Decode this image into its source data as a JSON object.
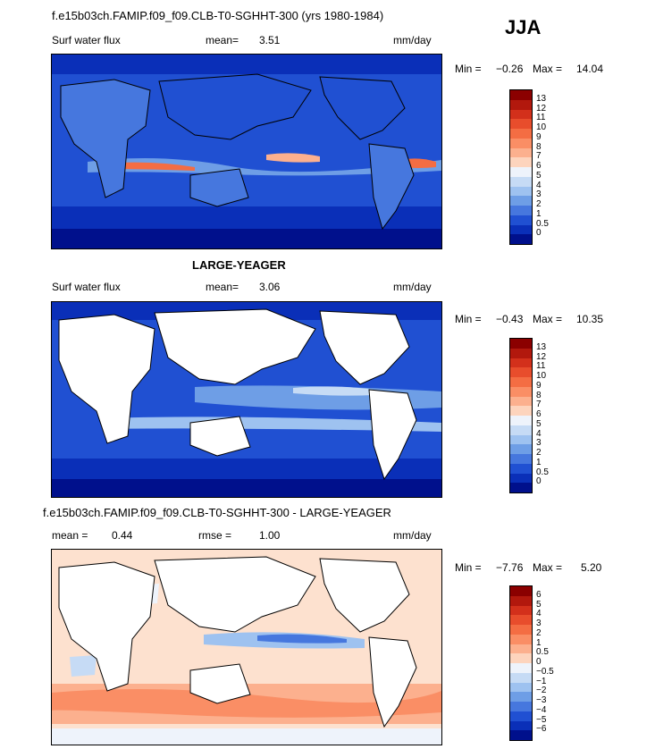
{
  "season": "JJA",
  "panels": [
    {
      "title": "f.e15b03ch.FAMIP.f09_f09.CLB-T0-SGHHT-300 (yrs 1980-1984)",
      "variable": "Surf water flux",
      "stat1_label": "mean=",
      "stat1_value": "3.51",
      "stat2_label": "",
      "stat2_value": "",
      "units": "mm/day",
      "min_label": "Min =",
      "min_value": "−0.26",
      "max_label": "Max =",
      "max_value": "14.04",
      "colorbar_labels": [
        "13",
        "12",
        "11",
        "10",
        "9",
        "8",
        "7",
        "6",
        "5",
        "4",
        "3",
        "2",
        "1",
        "0.5",
        "0"
      ],
      "colorbar_colors": [
        "#8b0000",
        "#b2180d",
        "#d3301b",
        "#e84d2c",
        "#f46d43",
        "#fa8e65",
        "#fcb08e",
        "#fdd4bd",
        "#eef3fb",
        "#c6dbf5",
        "#9ec2f0",
        "#6e9ee6",
        "#4677de",
        "#2050d2",
        "#0a2fb8",
        "#00108c"
      ]
    },
    {
      "title": "LARGE-YEAGER",
      "variable": "Surf water flux",
      "stat1_label": "mean=",
      "stat1_value": "3.06",
      "stat2_label": "",
      "stat2_value": "",
      "units": "mm/day",
      "min_label": "Min =",
      "min_value": "−0.43",
      "max_label": "Max =",
      "max_value": "10.35",
      "colorbar_labels": [
        "13",
        "12",
        "11",
        "10",
        "9",
        "8",
        "7",
        "6",
        "5",
        "4",
        "3",
        "2",
        "1",
        "0.5",
        "0"
      ],
      "colorbar_colors": [
        "#8b0000",
        "#b2180d",
        "#d3301b",
        "#e84d2c",
        "#f46d43",
        "#fa8e65",
        "#fcb08e",
        "#fdd4bd",
        "#eef3fb",
        "#c6dbf5",
        "#9ec2f0",
        "#6e9ee6",
        "#4677de",
        "#2050d2",
        "#0a2fb8",
        "#00108c"
      ]
    },
    {
      "title": "f.e15b03ch.FAMIP.f09_f09.CLB-T0-SGHHT-300 - LARGE-YEAGER",
      "variable": "",
      "stat1_label": "mean =",
      "stat1_value": "0.44",
      "stat2_label": "rmse =",
      "stat2_value": "1.00",
      "units": "mm/day",
      "min_label": "Min =",
      "min_value": "−7.76",
      "max_label": "Max =",
      "max_value": "5.20",
      "colorbar_labels": [
        "6",
        "5",
        "4",
        "3",
        "2",
        "1",
        "0.5",
        "0",
        "−0.5",
        "−1",
        "−2",
        "−3",
        "−4",
        "−5",
        "−6"
      ],
      "colorbar_colors": [
        "#8b0000",
        "#b2180d",
        "#d3301b",
        "#e84d2c",
        "#f46d43",
        "#fa8e65",
        "#fcb08e",
        "#fdd4bd",
        "#eef3fb",
        "#c6dbf5",
        "#9ec2f0",
        "#6e9ee6",
        "#4677de",
        "#2050d2",
        "#0a2fb8",
        "#00108c"
      ]
    }
  ],
  "palette": {
    "ocean_deep": "#00108c",
    "ocean_mid": "#2050d2",
    "ocean_light": "#6e9ee6",
    "land_wet": "#4677de",
    "diff_base": "#fde1cf",
    "land_white": "#ffffff"
  }
}
